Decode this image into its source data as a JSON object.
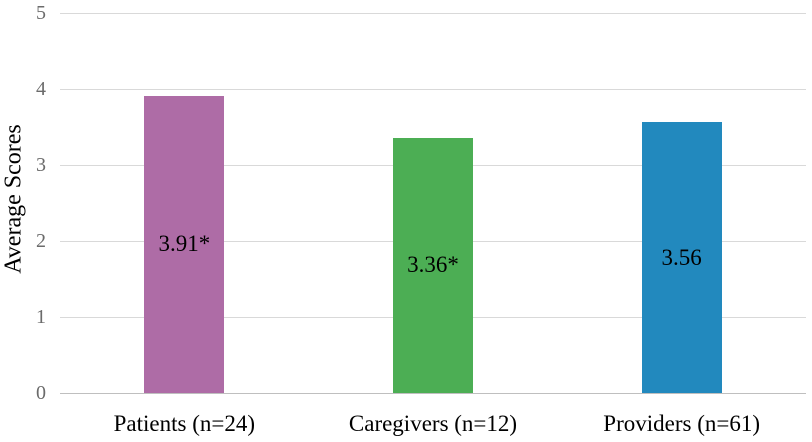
{
  "chart_data": {
    "type": "bar",
    "title": "",
    "xlabel": "",
    "ylabel": "Average Scores",
    "categories": [
      "Patients (n=24)",
      "Caregivers (n=12)",
      "Providers (n=61)"
    ],
    "values": [
      3.91,
      3.36,
      3.56
    ],
    "bar_labels": [
      "3.91*",
      "3.36*",
      "3.56"
    ],
    "bar_colors": [
      "#ae6ca6",
      "#4cae54",
      "#2289be"
    ],
    "ylim": [
      0,
      5
    ],
    "yticks": [
      0,
      1,
      2,
      3,
      4,
      5
    ],
    "grid": "horizontal",
    "legend": "none",
    "bar_label_position": "inside-center"
  },
  "colors": {
    "background": "#ffffff",
    "gridline": "#d9d9d9",
    "axis_line": "#bfbfbf",
    "tick_label": "#6b6b6b",
    "text": "#000000"
  }
}
